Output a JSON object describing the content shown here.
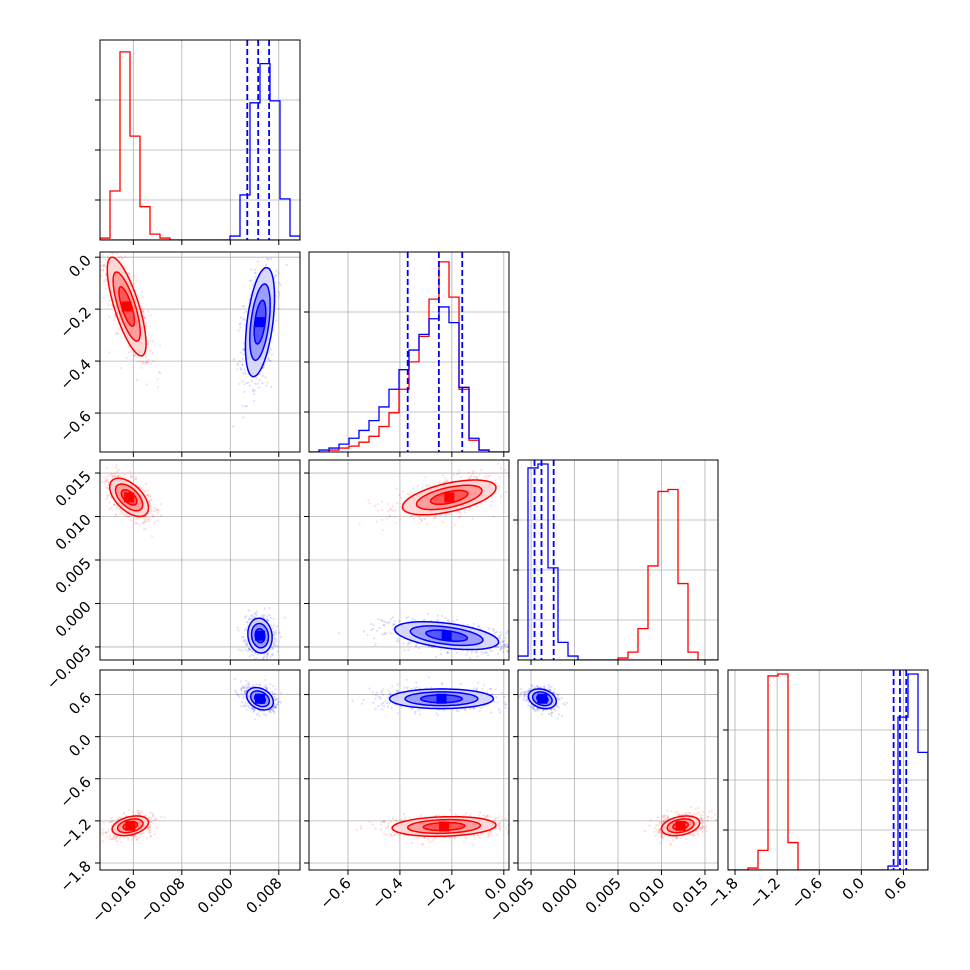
{
  "chart_data": {
    "type": "corner",
    "grid": true,
    "colors": {
      "series_a": "#ff0000",
      "series_b": "#0000ff",
      "grid": "#b0b0b0",
      "axes": "#000000"
    },
    "parameters": [
      {
        "range": [
          -0.0215,
          0.0115
        ],
        "ticks": [
          -0.016,
          -0.008,
          0.0,
          0.008
        ],
        "tick_labels": [
          "−0.016",
          "−0.008",
          "0.000",
          "0.008"
        ],
        "hist_a": [
          0.01,
          0.25,
          0.96,
          0.53,
          0.17,
          0.03,
          0.01,
          0.0,
          0.0,
          0.0,
          0.0,
          0.0,
          0.0,
          0.0,
          0.0,
          0.0,
          0.0,
          0.0,
          0.0,
          0.0
        ],
        "hist_b": [
          0.0,
          0.0,
          0.0,
          0.0,
          0.0,
          0.0,
          0.0,
          0.0,
          0.0,
          0.0,
          0.0,
          0.0,
          0.0,
          0.02,
          0.23,
          0.7,
          0.9,
          0.71,
          0.21,
          0.02
        ],
        "quantiles_b": [
          0.0028,
          0.0046,
          0.0064
        ]
      },
      {
        "range": [
          -0.75,
          0.02
        ],
        "ticks": [
          -0.6,
          -0.4,
          -0.2,
          0.0
        ],
        "tick_labels": [
          "−0.6",
          "−0.4",
          "−0.2",
          "0.0"
        ],
        "hist_a": [
          0.0,
          0.0,
          0.01,
          0.02,
          0.03,
          0.05,
          0.08,
          0.13,
          0.2,
          0.32,
          0.46,
          0.59,
          0.78,
          0.97,
          0.79,
          0.32,
          0.06,
          0.01,
          0.0,
          0.0
        ],
        "hist_b": [
          0.0,
          0.01,
          0.02,
          0.04,
          0.07,
          0.11,
          0.16,
          0.23,
          0.32,
          0.42,
          0.52,
          0.6,
          0.68,
          0.74,
          0.66,
          0.33,
          0.07,
          0.01,
          0.0,
          0.0
        ],
        "quantiles_b": [
          -0.37,
          -0.25,
          -0.16
        ]
      },
      {
        "range": [
          -0.0065,
          0.0165
        ],
        "ticks": [
          -0.005,
          0.0,
          0.005,
          0.01,
          0.015
        ],
        "tick_labels": [
          "−0.005",
          "0.000",
          "0.005",
          "0.010",
          "0.015"
        ],
        "hist_a": [
          0.0,
          0.0,
          0.0,
          0.0,
          0.0,
          0.0,
          0.0,
          0.0,
          0.0,
          0.0,
          0.01,
          0.04,
          0.16,
          0.48,
          0.86,
          0.87,
          0.39,
          0.04,
          0.0,
          0.0
        ],
        "hist_b": [
          0.02,
          0.98,
          1.0,
          0.47,
          0.09,
          0.02,
          0.0,
          0.0,
          0.0,
          0.0,
          0.0,
          0.0,
          0.0,
          0.0,
          0.0,
          0.0,
          0.0,
          0.0,
          0.0,
          0.0
        ],
        "quantiles_b": [
          -0.0046,
          -0.0038,
          -0.0024
        ]
      },
      {
        "range": [
          -1.9,
          0.95
        ],
        "ticks": [
          -1.8,
          -1.2,
          -0.6,
          0.0,
          0.6
        ],
        "tick_labels": [
          "−1.8",
          "−1.2",
          "−0.6",
          "0.0",
          "0.6"
        ],
        "hist_a": [
          0.0,
          0.0,
          0.01,
          0.1,
          0.99,
          1.0,
          0.14,
          0.0,
          0.0,
          0.0,
          0.0,
          0.0,
          0.0,
          0.0,
          0.0,
          0.0,
          0.0,
          0.0,
          0.0,
          0.0
        ],
        "hist_b": [
          0.0,
          0.0,
          0.0,
          0.0,
          0.0,
          0.0,
          0.0,
          0.0,
          0.0,
          0.0,
          0.0,
          0.0,
          0.0,
          0.0,
          0.0,
          0.0,
          0.02,
          0.78,
          1.0,
          0.6
        ],
        "quantiles_b": [
          0.46,
          0.55,
          0.64
        ]
      }
    ],
    "pairs": [
      {
        "x": 0,
        "y": 1,
        "a": {
          "mean": [
            -0.0171,
            -0.19
          ],
          "sd": [
            0.0016,
            0.095
          ],
          "corr": -0.75
        },
        "b": {
          "mean": [
            0.0049,
            -0.25
          ],
          "sd": [
            0.0012,
            0.105
          ],
          "corr": 0.45
        }
      },
      {
        "x": 0,
        "y": 2,
        "a": {
          "mean": [
            -0.0167,
            0.0122
          ],
          "sd": [
            0.0016,
            0.0011
          ],
          "corr": -0.55
        },
        "b": {
          "mean": [
            0.0049,
            -0.0037
          ],
          "sd": [
            0.001,
            0.001
          ],
          "corr": -0.1
        }
      },
      {
        "x": 1,
        "y": 2,
        "a": {
          "mean": [
            -0.21,
            0.0122
          ],
          "sd": [
            0.09,
            0.001
          ],
          "corr": 0.55
        },
        "b": {
          "mean": [
            -0.22,
            -0.0037
          ],
          "sd": [
            0.1,
            0.0008
          ],
          "corr": -0.45
        }
      },
      {
        "x": 0,
        "y": 3,
        "a": {
          "mean": [
            -0.0165,
            -1.27
          ],
          "sd": [
            0.0015,
            0.07
          ],
          "corr": 0.35
        },
        "b": {
          "mean": [
            0.0049,
            0.54
          ],
          "sd": [
            0.0011,
            0.08
          ],
          "corr": -0.3
        }
      },
      {
        "x": 1,
        "y": 3,
        "a": {
          "mean": [
            -0.23,
            -1.28
          ],
          "sd": [
            0.1,
            0.07
          ],
          "corr": 0.15
        },
        "b": {
          "mean": [
            -0.24,
            0.54
          ],
          "sd": [
            0.1,
            0.07
          ],
          "corr": 0.0
        }
      },
      {
        "x": 2,
        "y": 3,
        "a": {
          "mean": [
            0.0122,
            -1.27
          ],
          "sd": [
            0.0011,
            0.07
          ],
          "corr": 0.3
        },
        "b": {
          "mean": [
            -0.0037,
            0.54
          ],
          "sd": [
            0.0008,
            0.07
          ],
          "corr": -0.25
        }
      }
    ]
  }
}
